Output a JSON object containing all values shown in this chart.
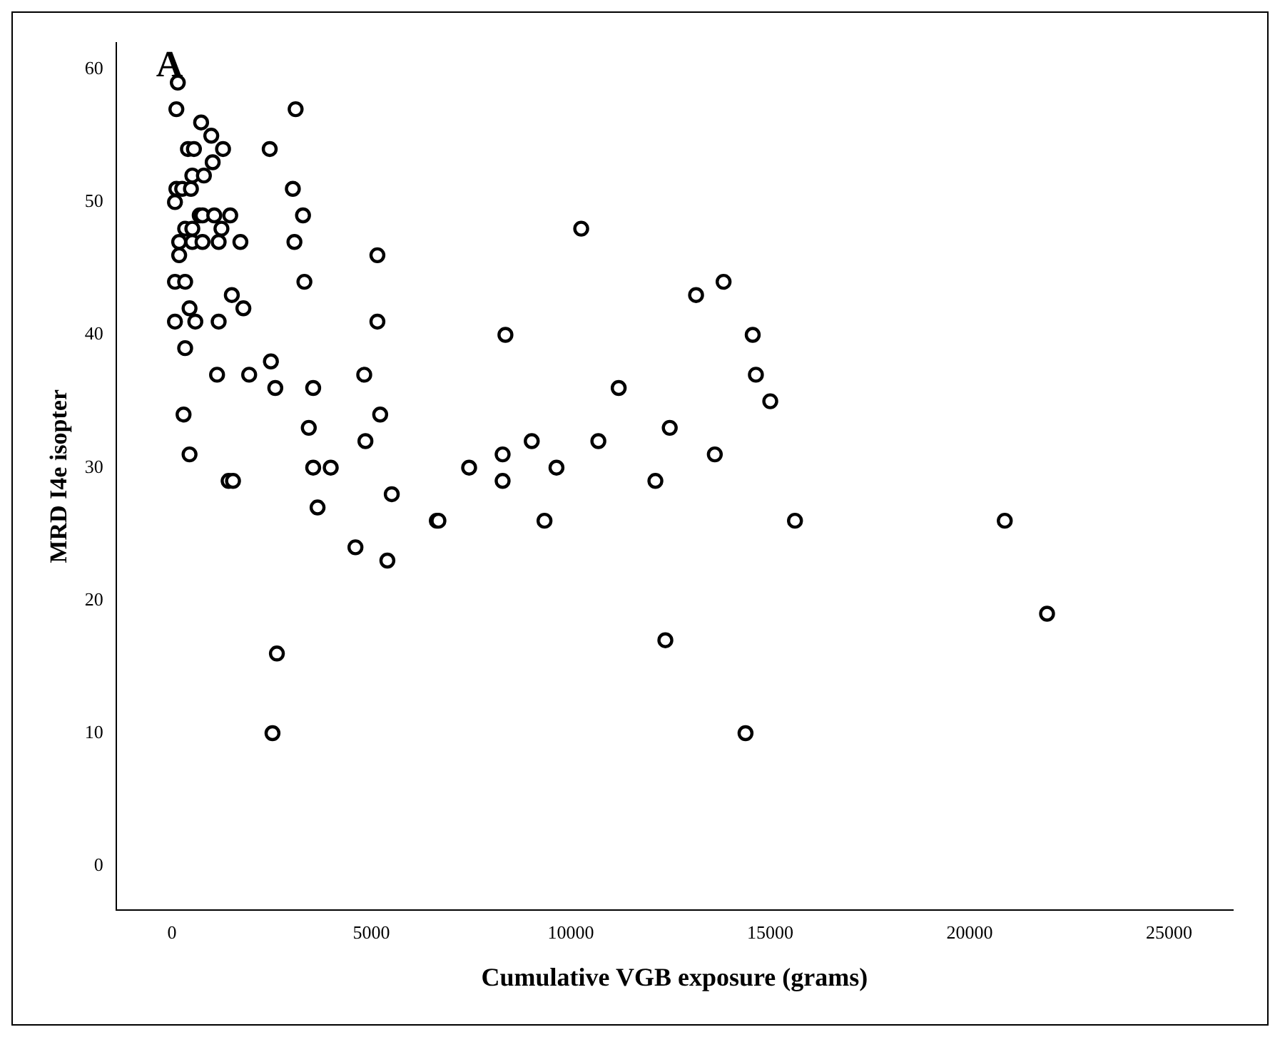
{
  "chart_data": {
    "type": "scatter",
    "xlabel": "Cumulative VGB exposure (grams)",
    "ylabel": "MRD I4e isopter",
    "annotations": [
      "A"
    ],
    "marker": "circle",
    "grid": false,
    "legend": false,
    "xlim": [
      -1400,
      26600
    ],
    "ylim": [
      -3.3,
      62
    ],
    "xticks": [
      0,
      5000,
      10000,
      15000,
      20000,
      25000
    ],
    "yticks": [
      0,
      10,
      20,
      30,
      40,
      50,
      60
    ],
    "series": [
      {
        "color": "#000000",
        "x": [
          146,
          110,
          730,
          985,
          400,
          550,
          1280,
          2450,
          1020,
          510,
          800,
          110,
          255,
          475,
          3030,
          75,
          695,
          765,
          1060,
          1460,
          3285,
          330,
          510,
          1240,
          180,
          510,
          765,
          1170,
          1715,
          3070,
          180,
          5150,
          75,
          330,
          3320,
          1500,
          440,
          1790,
          75,
          585,
          1170,
          5150,
          330,
          2480,
          1130,
          1935,
          4820,
          2590,
          3540,
          290,
          5220,
          3430,
          4850,
          440,
          3540,
          3980,
          1420,
          1530,
          5510,
          3650,
          6640,
          4600,
          5400,
          2630,
          2520,
          3100,
          10260,
          13830,
          13140,
          8360,
          14560,
          14640,
          11200,
          15000,
          12480,
          9020,
          10690,
          8290,
          13610,
          7450,
          9640,
          8290,
          12120,
          6680,
          9340,
          15620,
          12370,
          20880,
          21940,
          14380
        ],
        "values": [
          59,
          57,
          56,
          55,
          54,
          54,
          54,
          54,
          53,
          52,
          52,
          51,
          51,
          51,
          51,
          50,
          49,
          49,
          49,
          49,
          49,
          48,
          48,
          48,
          47,
          47,
          47,
          47,
          47,
          47,
          46,
          46,
          44,
          44,
          44,
          43,
          42,
          42,
          41,
          41,
          41,
          41,
          39,
          38,
          37,
          37,
          37,
          36,
          36,
          34,
          34,
          33,
          32,
          31,
          30,
          30,
          29,
          29,
          28,
          27,
          26,
          24,
          23,
          16,
          10,
          57,
          48,
          44,
          43,
          40,
          40,
          37,
          36,
          35,
          33,
          32,
          32,
          31,
          31,
          30,
          30,
          29,
          29,
          26,
          26,
          26,
          17,
          26,
          19,
          10
        ]
      }
    ]
  }
}
